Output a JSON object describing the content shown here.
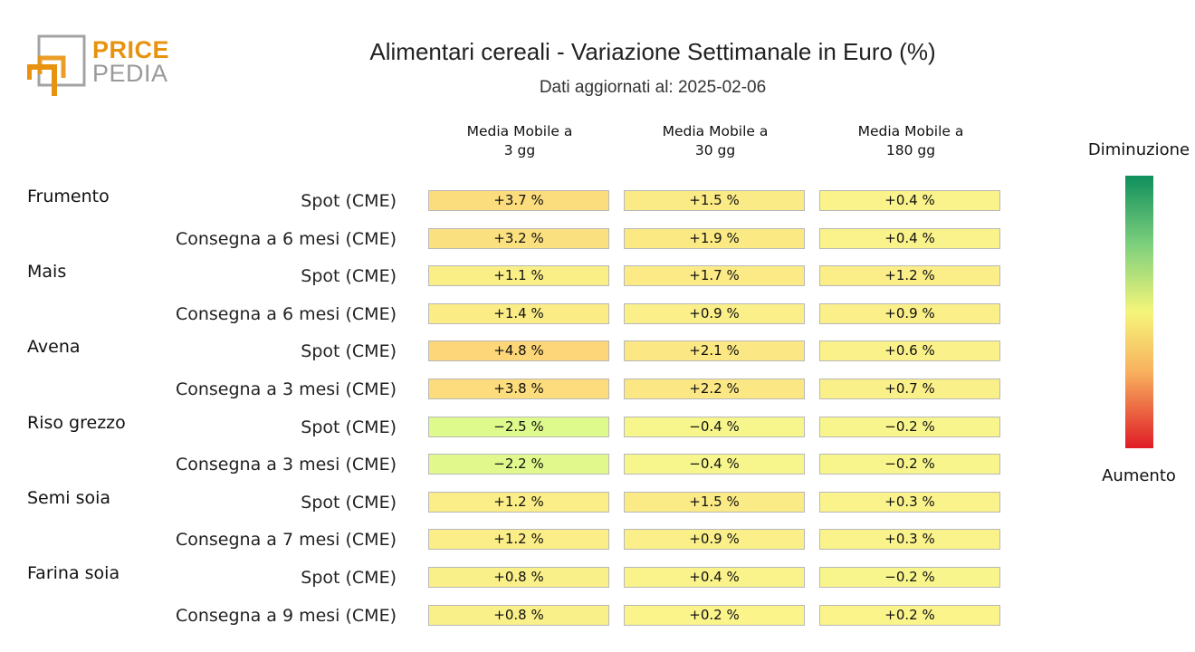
{
  "logo": {
    "word1": "PRICE",
    "word2": "PEDIA"
  },
  "title": "Alimentari cereali - Variazione Settimanale in Euro (%)",
  "subtitle": "Dati aggiornati al: 2025-02-06",
  "legend": {
    "top_label": "Diminuzione",
    "bottom_label": "Aumento"
  },
  "colors": {
    "orange": "#e8930f",
    "gray": "#9a9a9a",
    "scale": [
      "#0f8f5c",
      "#7ccf7c",
      "#f5f57a",
      "#f8b15e",
      "#df1c26"
    ]
  },
  "chart_data": {
    "type": "table",
    "columns": [
      {
        "line1": "Media Mobile a",
        "line2": "3 gg"
      },
      {
        "line1": "Media Mobile a",
        "line2": "30 gg"
      },
      {
        "line1": "Media Mobile a",
        "line2": "180 gg"
      }
    ],
    "groups": [
      {
        "name": "Frumento",
        "rows": [
          {
            "label": "Spot (CME)",
            "values": [
              3.7,
              1.5,
              0.4
            ],
            "texts": [
              "+3.7 %",
              "+1.5 %",
              "+0.4 %"
            ]
          },
          {
            "label": "Consegna a 6 mesi (CME)",
            "values": [
              3.2,
              1.9,
              0.4
            ],
            "texts": [
              "+3.2 %",
              "+1.9 %",
              "+0.4 %"
            ]
          }
        ]
      },
      {
        "name": "Mais",
        "rows": [
          {
            "label": "Spot (CME)",
            "values": [
              1.1,
              1.7,
              1.2
            ],
            "texts": [
              "+1.1 %",
              "+1.7 %",
              "+1.2 %"
            ]
          },
          {
            "label": "Consegna a 6 mesi (CME)",
            "values": [
              1.4,
              0.9,
              0.9
            ],
            "texts": [
              "+1.4 %",
              "+0.9 %",
              "+0.9 %"
            ]
          }
        ]
      },
      {
        "name": "Avena",
        "rows": [
          {
            "label": "Spot (CME)",
            "values": [
              4.8,
              2.1,
              0.6
            ],
            "texts": [
              "+4.8 %",
              "+2.1 %",
              "+0.6 %"
            ]
          },
          {
            "label": "Consegna a 3 mesi (CME)",
            "values": [
              3.8,
              2.2,
              0.7
            ],
            "texts": [
              "+3.8 %",
              "+2.2 %",
              "+0.7 %"
            ]
          }
        ]
      },
      {
        "name": "Riso grezzo",
        "rows": [
          {
            "label": "Spot (CME)",
            "values": [
              -2.5,
              -0.4,
              -0.2
            ],
            "texts": [
              "−2.5 %",
              "−0.4 %",
              "−0.2 %"
            ]
          },
          {
            "label": "Consegna a 3 mesi (CME)",
            "values": [
              -2.2,
              -0.4,
              -0.2
            ],
            "texts": [
              "−2.2 %",
              "−0.4 %",
              "−0.2 %"
            ]
          }
        ]
      },
      {
        "name": "Semi soia",
        "rows": [
          {
            "label": "Spot (CME)",
            "values": [
              1.2,
              1.5,
              0.3
            ],
            "texts": [
              "+1.2 %",
              "+1.5 %",
              "+0.3 %"
            ]
          },
          {
            "label": "Consegna a 7 mesi (CME)",
            "values": [
              1.2,
              0.9,
              0.3
            ],
            "texts": [
              "+1.2 %",
              "+0.9 %",
              "+0.3 %"
            ]
          }
        ]
      },
      {
        "name": "Farina soia",
        "rows": [
          {
            "label": "Spot (CME)",
            "values": [
              0.8,
              0.4,
              -0.2
            ],
            "texts": [
              "+0.8 %",
              "+0.4 %",
              "−0.2 %"
            ]
          },
          {
            "label": "Consegna a 9 mesi (CME)",
            "values": [
              0.8,
              0.2,
              0.2
            ],
            "texts": [
              "+0.8 %",
              "+0.2 %",
              "+0.2 %"
            ]
          }
        ]
      }
    ]
  }
}
